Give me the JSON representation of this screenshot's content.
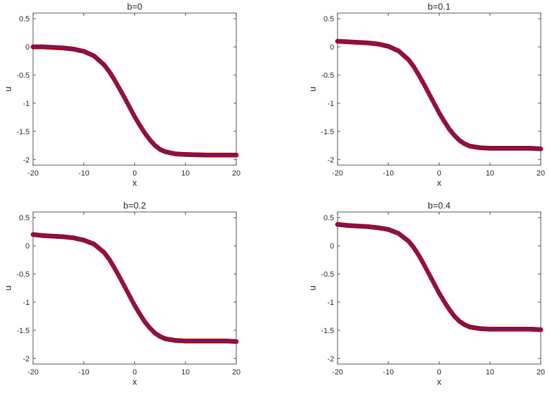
{
  "colors": {
    "marker": "#c0001a",
    "line": "#3030c8",
    "axes": "#262626"
  },
  "chart_data": [
    {
      "type": "line",
      "title": "b=0",
      "xlabel": "x",
      "ylabel": "u",
      "xlim": [
        -20,
        20
      ],
      "ylim": [
        -2.1,
        0.6
      ],
      "xticks": [
        "-20",
        "-10",
        "0",
        "10",
        "20"
      ],
      "yticks": [
        "0.5",
        "0",
        "-0.5",
        "-1",
        "-1.5",
        "-2"
      ],
      "grid": false,
      "series": [
        {
          "style": "markers",
          "x": [
            -20,
            -18,
            -16,
            -14,
            -12,
            -10,
            -8,
            -6,
            -5,
            -4,
            -3,
            -2,
            -1,
            0,
            1,
            2,
            3,
            4,
            5,
            6,
            8,
            10,
            12,
            14,
            16,
            18,
            20
          ],
          "y": [
            0.0,
            0.0,
            -0.01,
            -0.02,
            -0.04,
            -0.08,
            -0.16,
            -0.32,
            -0.44,
            -0.58,
            -0.74,
            -0.9,
            -1.07,
            -1.24,
            -1.39,
            -1.53,
            -1.65,
            -1.75,
            -1.82,
            -1.86,
            -1.9,
            -1.91,
            -1.915,
            -1.92,
            -1.92,
            -1.92,
            -1.92
          ]
        },
        {
          "style": "line",
          "x": [
            -20,
            -18,
            -16,
            -14,
            -12,
            -10,
            -8,
            -6,
            -5,
            -4,
            -3,
            -2,
            -1,
            0,
            1,
            2,
            3,
            4,
            5,
            6,
            8,
            10,
            12,
            14,
            16,
            18,
            20
          ],
          "y": [
            0.0,
            0.0,
            -0.01,
            -0.02,
            -0.04,
            -0.08,
            -0.16,
            -0.32,
            -0.44,
            -0.58,
            -0.74,
            -0.9,
            -1.07,
            -1.24,
            -1.39,
            -1.53,
            -1.65,
            -1.75,
            -1.82,
            -1.86,
            -1.9,
            -1.91,
            -1.915,
            -1.92,
            -1.92,
            -1.92,
            -1.92
          ]
        }
      ]
    },
    {
      "type": "line",
      "title": "b=0.1",
      "xlabel": "x",
      "ylabel": "u",
      "xlim": [
        -20,
        20
      ],
      "ylim": [
        -2.1,
        0.6
      ],
      "xticks": [
        "-20",
        "-10",
        "0",
        "10",
        "20"
      ],
      "yticks": [
        "0.5",
        "0",
        "-0.5",
        "-1",
        "-1.5",
        "-2"
      ],
      "grid": false,
      "series": [
        {
          "style": "markers",
          "x": [
            -20,
            -18,
            -16,
            -14,
            -12,
            -10,
            -8,
            -6,
            -5,
            -4,
            -3,
            -2,
            -1,
            0,
            1,
            2,
            3,
            4,
            5,
            6,
            8,
            10,
            12,
            14,
            16,
            18,
            20
          ],
          "y": [
            0.1,
            0.09,
            0.08,
            0.07,
            0.05,
            0.01,
            -0.07,
            -0.23,
            -0.35,
            -0.5,
            -0.66,
            -0.83,
            -1.0,
            -1.17,
            -1.32,
            -1.46,
            -1.57,
            -1.66,
            -1.72,
            -1.76,
            -1.79,
            -1.8,
            -1.8,
            -1.8,
            -1.8,
            -1.8,
            -1.81
          ]
        },
        {
          "style": "line",
          "x": [
            -20,
            -18,
            -16,
            -14,
            -12,
            -10,
            -8,
            -6,
            -5,
            -4,
            -3,
            -2,
            -1,
            0,
            1,
            2,
            3,
            4,
            5,
            6,
            8,
            10,
            12,
            14,
            16,
            18,
            20
          ],
          "y": [
            0.1,
            0.09,
            0.08,
            0.07,
            0.05,
            0.01,
            -0.07,
            -0.23,
            -0.35,
            -0.5,
            -0.66,
            -0.83,
            -1.0,
            -1.17,
            -1.32,
            -1.46,
            -1.57,
            -1.66,
            -1.72,
            -1.76,
            -1.79,
            -1.8,
            -1.8,
            -1.8,
            -1.8,
            -1.8,
            -1.81
          ]
        }
      ]
    },
    {
      "type": "line",
      "title": "b=0.2",
      "xlabel": "x",
      "ylabel": "u",
      "xlim": [
        -20,
        20
      ],
      "ylim": [
        -2.1,
        0.6
      ],
      "xticks": [
        "-20",
        "-10",
        "0",
        "10",
        "20"
      ],
      "yticks": [
        "0.5",
        "0",
        "-0.5",
        "-1",
        "-1.5",
        "-2"
      ],
      "grid": false,
      "series": [
        {
          "style": "markers",
          "x": [
            -20,
            -18,
            -16,
            -14,
            -12,
            -10,
            -8,
            -6,
            -5,
            -4,
            -3,
            -2,
            -1,
            0,
            1,
            2,
            3,
            4,
            5,
            6,
            8,
            10,
            12,
            14,
            16,
            18,
            20
          ],
          "y": [
            0.2,
            0.18,
            0.17,
            0.16,
            0.14,
            0.1,
            0.03,
            -0.12,
            -0.24,
            -0.39,
            -0.55,
            -0.72,
            -0.89,
            -1.06,
            -1.21,
            -1.35,
            -1.46,
            -1.55,
            -1.61,
            -1.65,
            -1.68,
            -1.69,
            -1.69,
            -1.69,
            -1.69,
            -1.69,
            -1.7
          ]
        },
        {
          "style": "line",
          "x": [
            -20,
            -18,
            -16,
            -14,
            -12,
            -10,
            -8,
            -6,
            -5,
            -4,
            -3,
            -2,
            -1,
            0,
            1,
            2,
            3,
            4,
            5,
            6,
            8,
            10,
            12,
            14,
            16,
            18,
            20
          ],
          "y": [
            0.2,
            0.18,
            0.17,
            0.16,
            0.14,
            0.1,
            0.03,
            -0.12,
            -0.24,
            -0.39,
            -0.55,
            -0.72,
            -0.89,
            -1.06,
            -1.21,
            -1.35,
            -1.46,
            -1.55,
            -1.61,
            -1.65,
            -1.68,
            -1.69,
            -1.69,
            -1.69,
            -1.69,
            -1.69,
            -1.7
          ]
        }
      ]
    },
    {
      "type": "line",
      "title": "b=0.4",
      "xlabel": "x",
      "ylabel": "u",
      "xlim": [
        -20,
        20
      ],
      "ylim": [
        -2.1,
        0.6
      ],
      "xticks": [
        "-20",
        "-10",
        "0",
        "10",
        "20"
      ],
      "yticks": [
        "0.5",
        "0",
        "-0.5",
        "-1",
        "-1.5",
        "-2"
      ],
      "grid": false,
      "series": [
        {
          "style": "markers",
          "x": [
            -20,
            -18,
            -16,
            -14,
            -12,
            -10,
            -8,
            -6,
            -5,
            -4,
            -3,
            -2,
            -1,
            0,
            1,
            2,
            3,
            4,
            5,
            6,
            8,
            10,
            12,
            14,
            16,
            18,
            20
          ],
          "y": [
            0.38,
            0.36,
            0.35,
            0.34,
            0.32,
            0.29,
            0.22,
            0.08,
            -0.03,
            -0.17,
            -0.33,
            -0.5,
            -0.67,
            -0.84,
            -0.99,
            -1.13,
            -1.25,
            -1.34,
            -1.4,
            -1.44,
            -1.47,
            -1.48,
            -1.48,
            -1.48,
            -1.48,
            -1.48,
            -1.49
          ]
        },
        {
          "style": "line",
          "x": [
            -20,
            -18,
            -16,
            -14,
            -12,
            -10,
            -8,
            -6,
            -5,
            -4,
            -3,
            -2,
            -1,
            0,
            1,
            2,
            3,
            4,
            5,
            6,
            8,
            10,
            12,
            14,
            16,
            18,
            20
          ],
          "y": [
            0.38,
            0.36,
            0.35,
            0.34,
            0.32,
            0.29,
            0.22,
            0.08,
            -0.03,
            -0.17,
            -0.33,
            -0.5,
            -0.67,
            -0.84,
            -0.99,
            -1.13,
            -1.25,
            -1.34,
            -1.4,
            -1.44,
            -1.47,
            -1.48,
            -1.48,
            -1.48,
            -1.48,
            -1.48,
            -1.49
          ]
        }
      ]
    }
  ]
}
